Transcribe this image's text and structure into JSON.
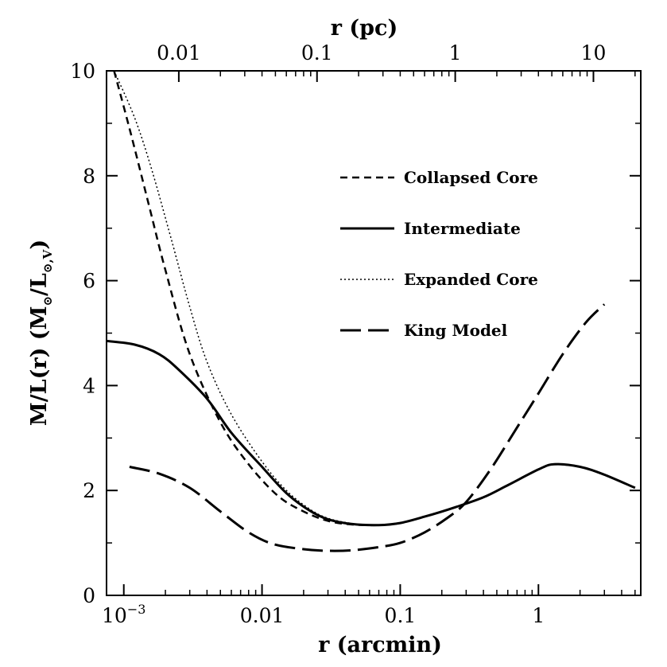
{
  "chart_data": {
    "type": "line",
    "xlabel": {
      "main": "r (arcmin)"
    },
    "x2label": {
      "main": "r (pc)"
    },
    "ylabel": {
      "prefix": "M/L(r) (M",
      "mid": "/L",
      "sub": "⊙,V",
      "suffix": ")"
    },
    "x_scale": "log",
    "xlim": [
      0.00075,
      5.5
    ],
    "ylim": [
      0,
      10
    ],
    "x_ticks": [
      {
        "value": 0.001,
        "base": "10",
        "exp": "−3"
      },
      {
        "value": 0.01,
        "label": "0.01"
      },
      {
        "value": 0.1,
        "label": "0.1"
      },
      {
        "value": 1,
        "label": "1"
      }
    ],
    "x2_ticks": [
      {
        "arcmin": 0.0025,
        "label": "0.01"
      },
      {
        "arcmin": 0.025,
        "label": "0.1"
      },
      {
        "arcmin": 0.25,
        "label": "1"
      },
      {
        "arcmin": 2.5,
        "label": "10"
      }
    ],
    "y_ticks": [
      0,
      2,
      4,
      6,
      8,
      10
    ],
    "legend_position": "top-right",
    "series": [
      {
        "name": "Collapsed Core",
        "style": "dashed",
        "points": [
          [
            0.00085,
            10
          ],
          [
            0.0011,
            8.9
          ],
          [
            0.0015,
            7.5
          ],
          [
            0.002,
            6.2
          ],
          [
            0.003,
            4.6
          ],
          [
            0.005,
            3.3
          ],
          [
            0.008,
            2.5
          ],
          [
            0.013,
            1.9
          ],
          [
            0.02,
            1.6
          ],
          [
            0.03,
            1.42
          ],
          [
            0.045,
            1.35
          ],
          [
            0.07,
            1.34
          ],
          [
            0.1,
            1.38
          ],
          [
            0.15,
            1.5
          ],
          [
            0.25,
            1.68
          ],
          [
            0.4,
            1.87
          ],
          [
            0.6,
            2.1
          ],
          [
            1.0,
            2.4
          ],
          [
            1.3,
            2.5
          ],
          [
            2.0,
            2.45
          ],
          [
            3.0,
            2.3
          ],
          [
            5.0,
            2.05
          ]
        ]
      },
      {
        "name": "Intermediate",
        "style": "solid",
        "points": [
          [
            0.00075,
            4.85
          ],
          [
            0.0012,
            4.78
          ],
          [
            0.0018,
            4.6
          ],
          [
            0.0025,
            4.3
          ],
          [
            0.004,
            3.75
          ],
          [
            0.006,
            3.1
          ],
          [
            0.01,
            2.45
          ],
          [
            0.015,
            1.95
          ],
          [
            0.022,
            1.62
          ],
          [
            0.03,
            1.45
          ],
          [
            0.045,
            1.36
          ],
          [
            0.07,
            1.34
          ],
          [
            0.1,
            1.38
          ],
          [
            0.15,
            1.5
          ],
          [
            0.25,
            1.68
          ],
          [
            0.4,
            1.87
          ],
          [
            0.6,
            2.1
          ],
          [
            1.0,
            2.4
          ],
          [
            1.3,
            2.5
          ],
          [
            2.0,
            2.45
          ],
          [
            3.0,
            2.3
          ],
          [
            5.0,
            2.05
          ]
        ]
      },
      {
        "name": "Expanded Core",
        "style": "dotted",
        "points": [
          [
            0.00085,
            10
          ],
          [
            0.0012,
            9.1
          ],
          [
            0.0016,
            8.1
          ],
          [
            0.0022,
            6.8
          ],
          [
            0.003,
            5.5
          ],
          [
            0.004,
            4.45
          ],
          [
            0.006,
            3.45
          ],
          [
            0.01,
            2.55
          ],
          [
            0.015,
            2.0
          ],
          [
            0.022,
            1.65
          ],
          [
            0.03,
            1.47
          ],
          [
            0.045,
            1.37
          ],
          [
            0.07,
            1.34
          ],
          [
            0.1,
            1.38
          ],
          [
            0.15,
            1.5
          ],
          [
            0.25,
            1.68
          ],
          [
            0.4,
            1.87
          ],
          [
            0.6,
            2.1
          ],
          [
            1.0,
            2.4
          ],
          [
            1.3,
            2.5
          ],
          [
            2.0,
            2.45
          ],
          [
            3.0,
            2.3
          ],
          [
            5.0,
            2.05
          ]
        ]
      },
      {
        "name": "King Model",
        "style": "long-dashed",
        "points": [
          [
            0.0011,
            2.45
          ],
          [
            0.0018,
            2.32
          ],
          [
            0.003,
            2.05
          ],
          [
            0.005,
            1.6
          ],
          [
            0.008,
            1.2
          ],
          [
            0.012,
            0.98
          ],
          [
            0.02,
            0.88
          ],
          [
            0.03,
            0.85
          ],
          [
            0.045,
            0.86
          ],
          [
            0.07,
            0.92
          ],
          [
            0.1,
            1.0
          ],
          [
            0.15,
            1.2
          ],
          [
            0.22,
            1.48
          ],
          [
            0.3,
            1.78
          ],
          [
            0.45,
            2.4
          ],
          [
            0.7,
            3.2
          ],
          [
            1.0,
            3.85
          ],
          [
            1.5,
            4.6
          ],
          [
            2.2,
            5.2
          ],
          [
            3.0,
            5.55
          ]
        ]
      }
    ]
  }
}
